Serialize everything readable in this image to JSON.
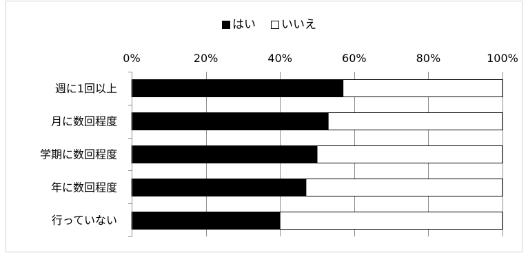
{
  "chart_data": {
    "type": "bar",
    "orientation": "horizontal",
    "stacked": true,
    "title": "",
    "xlabel": "",
    "ylabel": "",
    "xlim": [
      0,
      100
    ],
    "x_ticks": [
      "0%",
      "20%",
      "40%",
      "60%",
      "80%",
      "100%"
    ],
    "categories": [
      "週に1回以上",
      "月に数回程度",
      "学期に数回程度",
      "年に数回程度",
      "行っていない"
    ],
    "series": [
      {
        "name": "はい",
        "color": "#000000",
        "values": [
          57,
          53,
          50,
          47,
          40
        ]
      },
      {
        "name": "いいえ",
        "color": "#ffffff",
        "values": [
          43,
          47,
          50,
          53,
          60
        ]
      }
    ],
    "legend_position": "top",
    "grid": true
  }
}
